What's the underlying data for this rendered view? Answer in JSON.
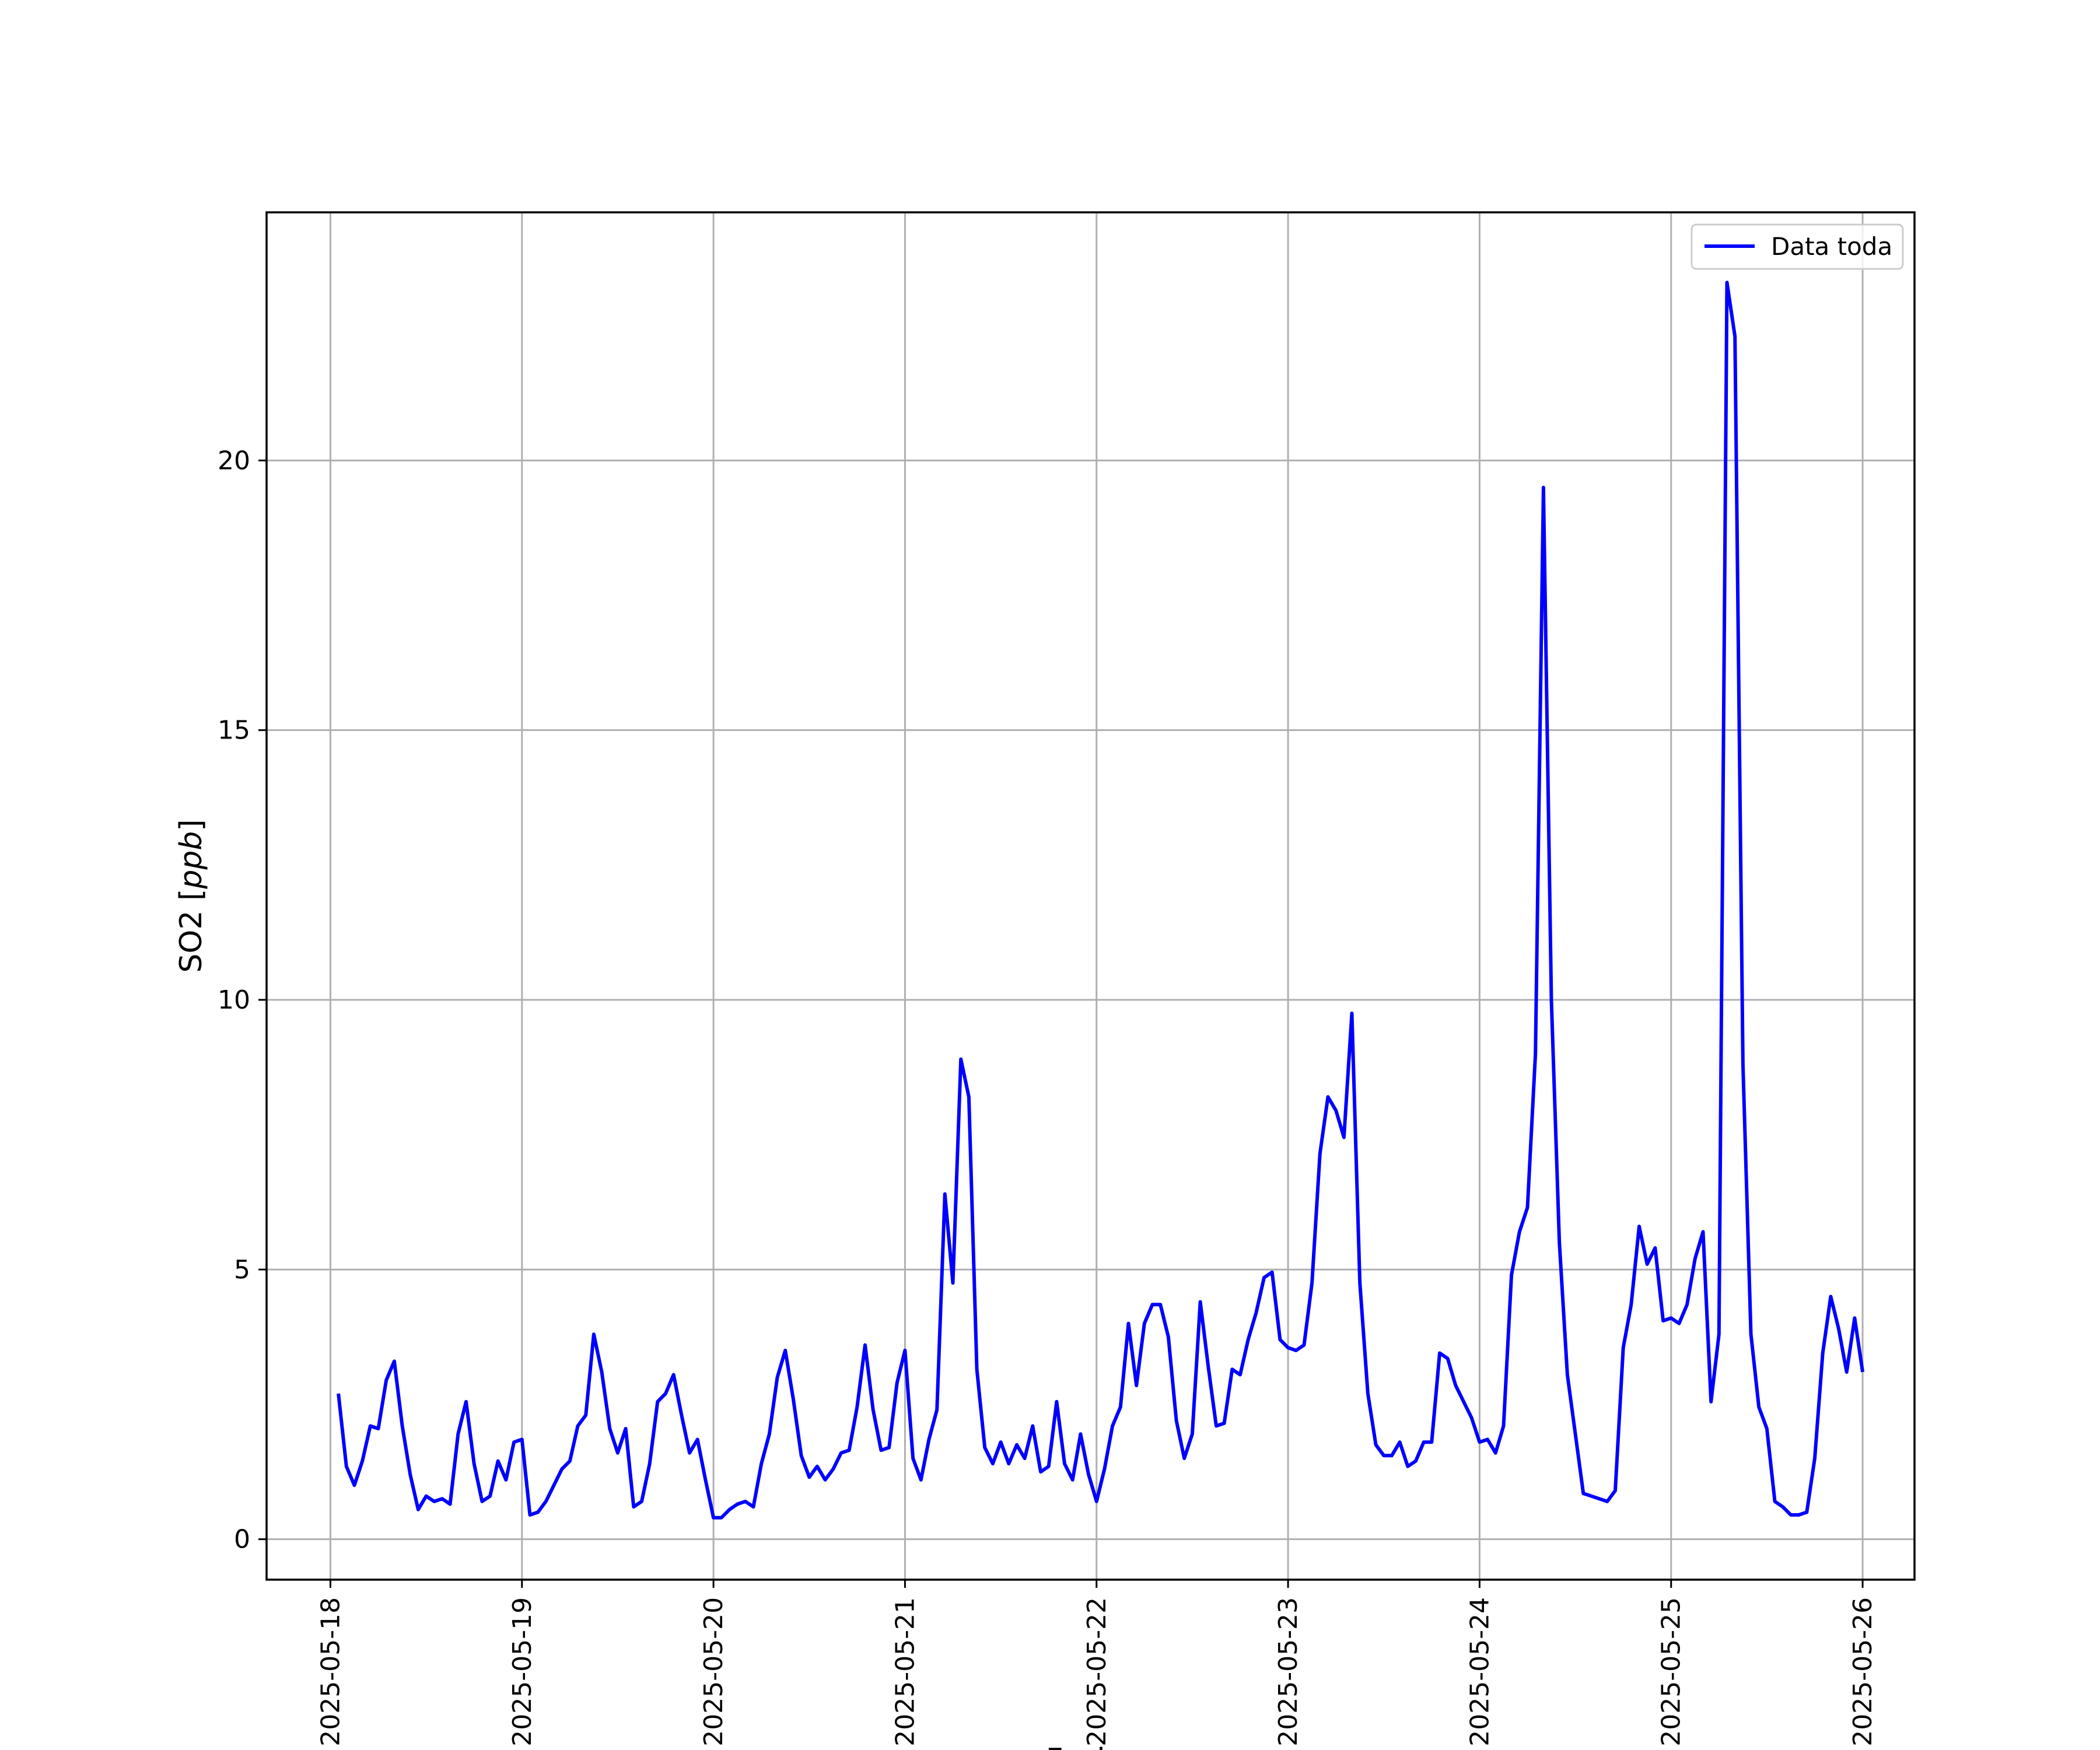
{
  "chart_data": {
    "type": "line",
    "title": "",
    "xlabel": "Fecha",
    "ylabel": "SO2 [ppb]",
    "ylabel_parts": {
      "prefix": "SO2 [",
      "unit": "ppb",
      "suffix": "]"
    },
    "xlim": [
      "2025-05-17 16:00",
      "2025-05-26 06:30"
    ],
    "ylim": [
      -0.75,
      24.6
    ],
    "x_ticks": [
      "2025-05-18",
      "2025-05-19",
      "2025-05-20",
      "2025-05-21",
      "2025-05-22",
      "2025-05-23",
      "2025-05-24",
      "2025-05-25",
      "2025-05-26"
    ],
    "y_ticks": [
      0,
      5,
      10,
      15,
      20
    ],
    "y_tick_labels": [
      "0",
      "5",
      "10",
      "15",
      "20"
    ],
    "grid": true,
    "legend_position": "top-right",
    "series": [
      {
        "name": "Data toda",
        "color": "#0000ff",
        "x_start": "2025-05-18 01:00",
        "x_step_hours": 1,
        "values": [
          2.7,
          1.35,
          1.0,
          1.45,
          2.1,
          2.05,
          2.95,
          3.3,
          2.1,
          1.2,
          0.55,
          0.8,
          0.7,
          0.75,
          0.65,
          1.95,
          2.55,
          1.4,
          0.7,
          0.8,
          1.45,
          1.1,
          1.8,
          1.85,
          0.45,
          0.5,
          0.7,
          1.0,
          1.3,
          1.45,
          2.1,
          2.3,
          3.8,
          3.1,
          2.05,
          1.6,
          2.05,
          0.6,
          0.7,
          1.4,
          2.55,
          2.7,
          3.05,
          2.3,
          1.6,
          1.85,
          1.1,
          0.4,
          0.4,
          0.55,
          0.65,
          0.7,
          0.6,
          1.4,
          1.95,
          3.0,
          3.5,
          2.6,
          1.55,
          1.15,
          1.35,
          1.1,
          1.3,
          1.6,
          1.65,
          2.45,
          3.6,
          2.4,
          1.65,
          1.7,
          2.9,
          3.5,
          1.5,
          1.1,
          1.85,
          2.4,
          6.4,
          4.75,
          8.9,
          8.2,
          3.15,
          1.7,
          1.4,
          1.8,
          1.4,
          1.75,
          1.5,
          2.1,
          1.25,
          1.35,
          2.55,
          1.4,
          1.1,
          1.95,
          1.2,
          0.7,
          1.3,
          2.1,
          2.45,
          4.0,
          2.85,
          4.0,
          4.35,
          4.35,
          3.75,
          2.2,
          1.5,
          1.95,
          4.4,
          3.2,
          2.1,
          2.15,
          3.15,
          3.05,
          3.7,
          4.2,
          4.85,
          4.95,
          3.7,
          3.55,
          3.5,
          3.6,
          4.75,
          7.15,
          8.2,
          7.95,
          7.45,
          9.75,
          4.75,
          2.7,
          1.75,
          1.55,
          1.55,
          1.8,
          1.35,
          1.45,
          1.8,
          1.8,
          3.45,
          3.35,
          2.85,
          2.55,
          2.25,
          1.8,
          1.85,
          1.6,
          2.1,
          4.9,
          5.7,
          6.15,
          9.0,
          19.5,
          10.0,
          5.5,
          3.05,
          1.95,
          0.85,
          0.8,
          0.75,
          0.7,
          0.9,
          3.55,
          4.35,
          5.8,
          5.1,
          5.4,
          4.05,
          4.1,
          4.0,
          4.35,
          5.2,
          5.7,
          2.55,
          3.8,
          23.3,
          22.3,
          8.8,
          3.8,
          2.45,
          2.05,
          0.7,
          0.6,
          0.45,
          0.45,
          0.5,
          1.5,
          3.45,
          4.5,
          3.9,
          3.1,
          4.1,
          3.1
        ]
      }
    ]
  }
}
